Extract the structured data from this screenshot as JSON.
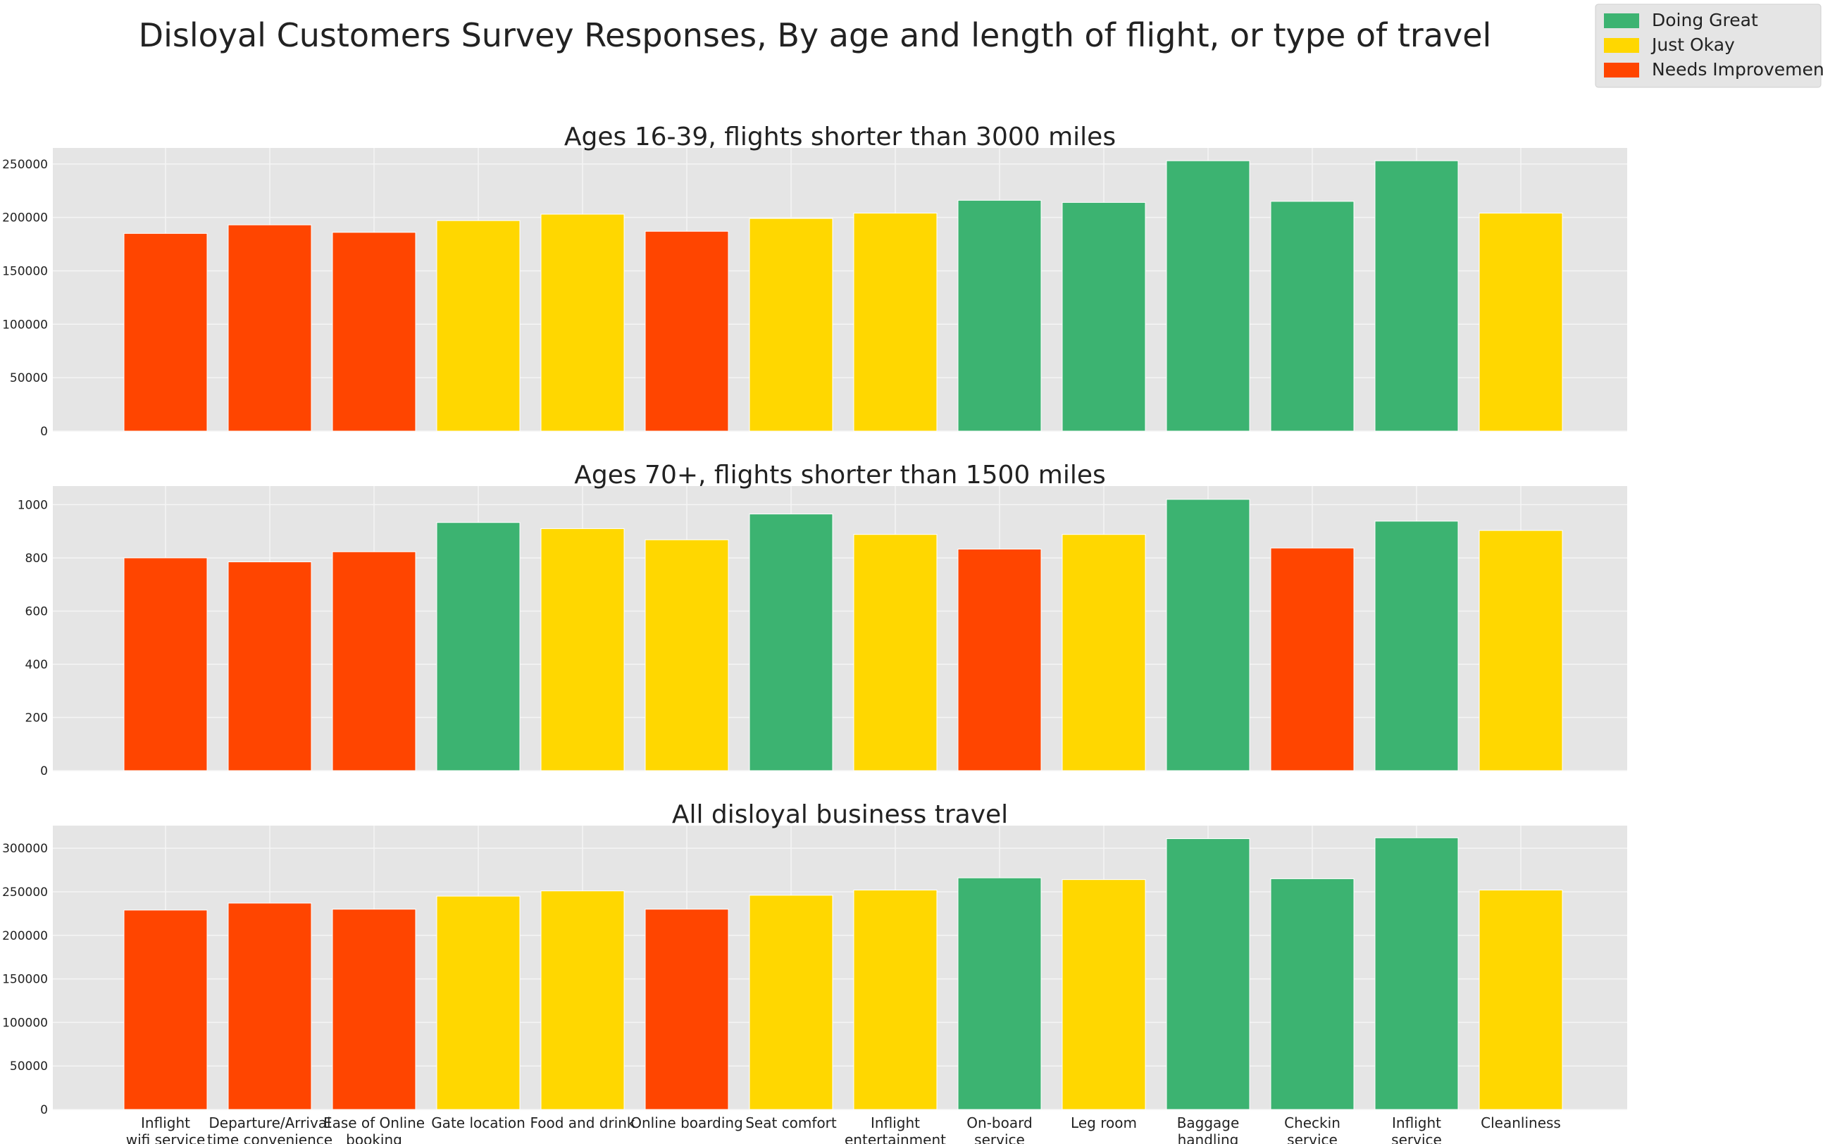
{
  "figure_title": "Disloyal Customers Survey Responses, By age and length of flight, or type of travel",
  "colors": {
    "Doing Great": "#3cb371",
    "Just Okay": "#ffd700",
    "Needs Improvement": "#ff4500",
    "panel_background": "#e5e5e5",
    "grid": "#f5f5f5"
  },
  "legend": {
    "placement": "top-right",
    "entries": [
      "Doing Great",
      "Just Okay",
      "Needs Improvement"
    ]
  },
  "chart_data": [
    {
      "type": "bar",
      "title": "Ages 16-39, flights shorter than 3000 miles",
      "categories": [
        "Inflight wifi service",
        "Departure/Arrival time convenience",
        "Ease of Online booking",
        "Gate location",
        "Food and drink",
        "Online boarding",
        "Seat comfort",
        "Inflight entertainment",
        "On-board service",
        "Leg room",
        "Baggage handling",
        "Checkin service",
        "Inflight service",
        "Cleanliness"
      ],
      "values": [
        185000,
        193000,
        186000,
        197000,
        203000,
        187000,
        199000,
        204000,
        216000,
        214000,
        253000,
        215000,
        253000,
        204000
      ],
      "ratings": [
        "Needs Improvement",
        "Needs Improvement",
        "Needs Improvement",
        "Just Okay",
        "Just Okay",
        "Needs Improvement",
        "Just Okay",
        "Just Okay",
        "Doing Great",
        "Doing Great",
        "Doing Great",
        "Doing Great",
        "Doing Great",
        "Just Okay"
      ],
      "ylim": [
        0,
        265000
      ],
      "yticks": [
        0,
        50000,
        100000,
        150000,
        200000,
        250000
      ],
      "show_xticklabels": false,
      "grid": true
    },
    {
      "type": "bar",
      "title": "Ages 70+, flights shorter than 1500 miles",
      "categories": [
        "Inflight wifi service",
        "Departure/Arrival time convenience",
        "Ease of Online booking",
        "Gate location",
        "Food and drink",
        "Online boarding",
        "Seat comfort",
        "Inflight entertainment",
        "On-board service",
        "Leg room",
        "Baggage handling",
        "Checkin service",
        "Inflight service",
        "Cleanliness"
      ],
      "values": [
        800,
        785,
        823,
        933,
        910,
        868,
        965,
        888,
        833,
        888,
        1020,
        837,
        938,
        903
      ],
      "ratings": [
        "Needs Improvement",
        "Needs Improvement",
        "Needs Improvement",
        "Doing Great",
        "Just Okay",
        "Just Okay",
        "Doing Great",
        "Just Okay",
        "Needs Improvement",
        "Just Okay",
        "Doing Great",
        "Needs Improvement",
        "Doing Great",
        "Just Okay"
      ],
      "ylim": [
        0,
        1070
      ],
      "yticks": [
        0,
        200,
        400,
        600,
        800,
        1000
      ],
      "show_xticklabels": false,
      "grid": true
    },
    {
      "type": "bar",
      "title": "All disloyal business travel",
      "categories": [
        "Inflight wifi service",
        "Departure/Arrival time convenience",
        "Ease of Online booking",
        "Gate location",
        "Food and drink",
        "Online boarding",
        "Seat comfort",
        "Inflight entertainment",
        "On-board service",
        "Leg room",
        "Baggage handling",
        "Checkin service",
        "Inflight service",
        "Cleanliness"
      ],
      "values": [
        229000,
        237000,
        230000,
        245000,
        251000,
        230000,
        246000,
        252000,
        266000,
        264000,
        311000,
        265000,
        312000,
        252000
      ],
      "ratings": [
        "Needs Improvement",
        "Needs Improvement",
        "Needs Improvement",
        "Just Okay",
        "Just Okay",
        "Needs Improvement",
        "Just Okay",
        "Just Okay",
        "Doing Great",
        "Just Okay",
        "Doing Great",
        "Doing Great",
        "Doing Great",
        "Just Okay"
      ],
      "ylim": [
        0,
        326000
      ],
      "yticks": [
        0,
        50000,
        100000,
        150000,
        200000,
        250000,
        300000
      ],
      "xtick_labels": [
        [
          "Inflight",
          "wifi service"
        ],
        [
          "Departure/Arrival",
          "time convenience"
        ],
        [
          "Ease of Online",
          "booking"
        ],
        [
          "Gate location"
        ],
        [
          "Food and drink"
        ],
        [
          "Online boarding"
        ],
        [
          "Seat comfort"
        ],
        [
          "Inflight",
          "entertainment"
        ],
        [
          "On-board",
          "service"
        ],
        [
          "Leg room"
        ],
        [
          "Baggage",
          "handling"
        ],
        [
          "Checkin",
          "service"
        ],
        [
          "Inflight",
          "service"
        ],
        [
          "Cleanliness"
        ]
      ],
      "show_xticklabels": true,
      "grid": true
    }
  ]
}
